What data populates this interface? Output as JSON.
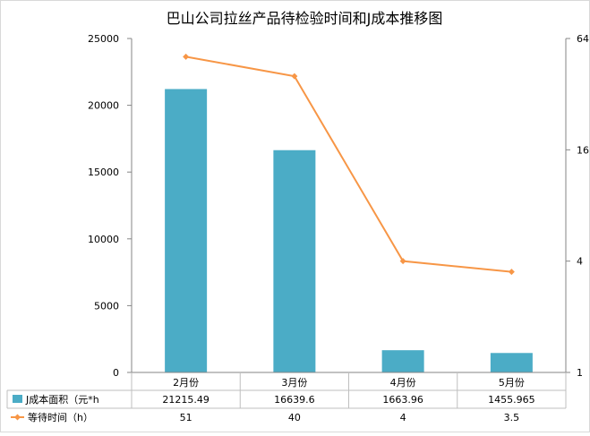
{
  "chart_data": {
    "type": "bar",
    "title": "巴山公司拉丝产品待检验时间和J成本推移图",
    "categories": [
      "2月份",
      "3月份",
      "4月份",
      "5月份"
    ],
    "series": [
      {
        "name": "J成本面积（元*h",
        "type": "bar",
        "axis": "left",
        "values": [
          21215.49,
          16639.6,
          1663.96,
          1455.965
        ],
        "value_labels": [
          "21215.49",
          "16639.6",
          "1663.96",
          "1455.965"
        ],
        "color": "#4BACC6"
      },
      {
        "name": "等待时间（h）",
        "type": "line",
        "axis": "right",
        "values": [
          51,
          40,
          4,
          3.5
        ],
        "value_labels": [
          "51",
          "40",
          "4",
          "3.5"
        ],
        "color": "#F79646"
      }
    ],
    "y_left": {
      "ticks": [
        0,
        5000,
        10000,
        15000,
        20000,
        25000
      ],
      "ylim": [
        0,
        25000
      ],
      "scale": "linear"
    },
    "y_right": {
      "ticks": [
        1,
        4,
        16,
        64
      ],
      "ylim": [
        1,
        64
      ],
      "scale": "log"
    },
    "grid": false,
    "legend": "data-table"
  }
}
